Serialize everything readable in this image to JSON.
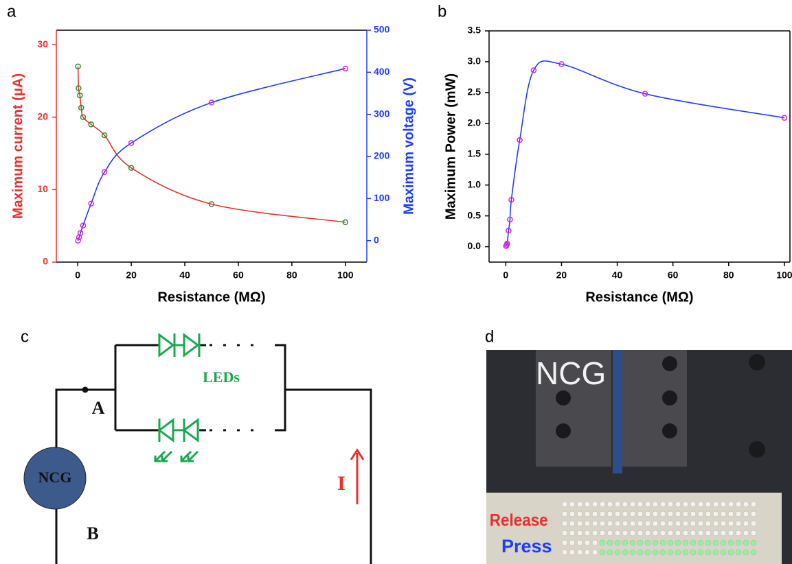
{
  "panel_labels": [
    "a",
    "b",
    "c",
    "d"
  ],
  "chart_data": [
    {
      "type": "line",
      "xlabel": "Resistance (MΩ)",
      "ylabel": "Maximum current (μA)",
      "y2label": "Maximum voltage (V)",
      "xlim": [
        -8,
        108
      ],
      "xticks": [
        0,
        20,
        40,
        60,
        80,
        100
      ],
      "ylim": [
        0,
        32
      ],
      "yticks": [
        0,
        10,
        20,
        30
      ],
      "ycolor": "#e8302c",
      "y2lim": [
        -51,
        500
      ],
      "y2ticks": [
        0,
        100,
        200,
        300,
        400,
        500
      ],
      "y2color": "#1f3bff",
      "series": [
        {
          "color": "#2e8b2e",
          "line_color": "#e8302c",
          "x": [
            0.1,
            0.3,
            0.8,
            1.3,
            2,
            5,
            10,
            20,
            50,
            100
          ],
          "values": [
            27,
            24,
            23,
            21.3,
            20,
            19,
            17.5,
            13,
            8,
            5.5
          ]
        },
        {
          "color": "#e020e0",
          "line_color": "#1f3bff",
          "axis": "y2",
          "x": [
            0.1,
            0.5,
            1,
            2,
            5,
            10,
            20,
            50,
            100
          ],
          "values": [
            0,
            8,
            18,
            36,
            88,
            163,
            232,
            328,
            409
          ]
        }
      ]
    },
    {
      "type": "line",
      "xlabel": "Resistance (MΩ)",
      "ylabel": "Maximum Power (mW)",
      "xlim": [
        -6,
        102
      ],
      "xticks": [
        0,
        20,
        40,
        60,
        80,
        100
      ],
      "ylim": [
        -0.25,
        3.5
      ],
      "yticks": [
        {
          "value": 0,
          "label": "0.0"
        },
        0.5,
        {
          "value": 1,
          "label": "1.0"
        },
        1.5,
        {
          "value": 2,
          "label": "2.0"
        },
        2.5,
        {
          "value": 3,
          "label": "3.0"
        },
        3.5
      ],
      "ycolor": "#000000",
      "series": [
        {
          "color": "#e020e0",
          "line_color": "#1f3bff",
          "x": [
            0.1,
            0.3,
            0.5,
            1,
            1.5,
            2,
            5,
            10,
            20,
            50,
            100
          ],
          "values": [
            0.01,
            0.03,
            0.05,
            0.26,
            0.44,
            0.76,
            1.73,
            2.86,
            2.96,
            2.48,
            2.09
          ]
        }
      ]
    }
  ],
  "circuit": {
    "source": "NCG",
    "node_a": "A",
    "node_b": "B",
    "leds": "LEDs",
    "current": "I"
  },
  "photo": {
    "device": "NCG",
    "release": "Release",
    "press": "Press"
  }
}
